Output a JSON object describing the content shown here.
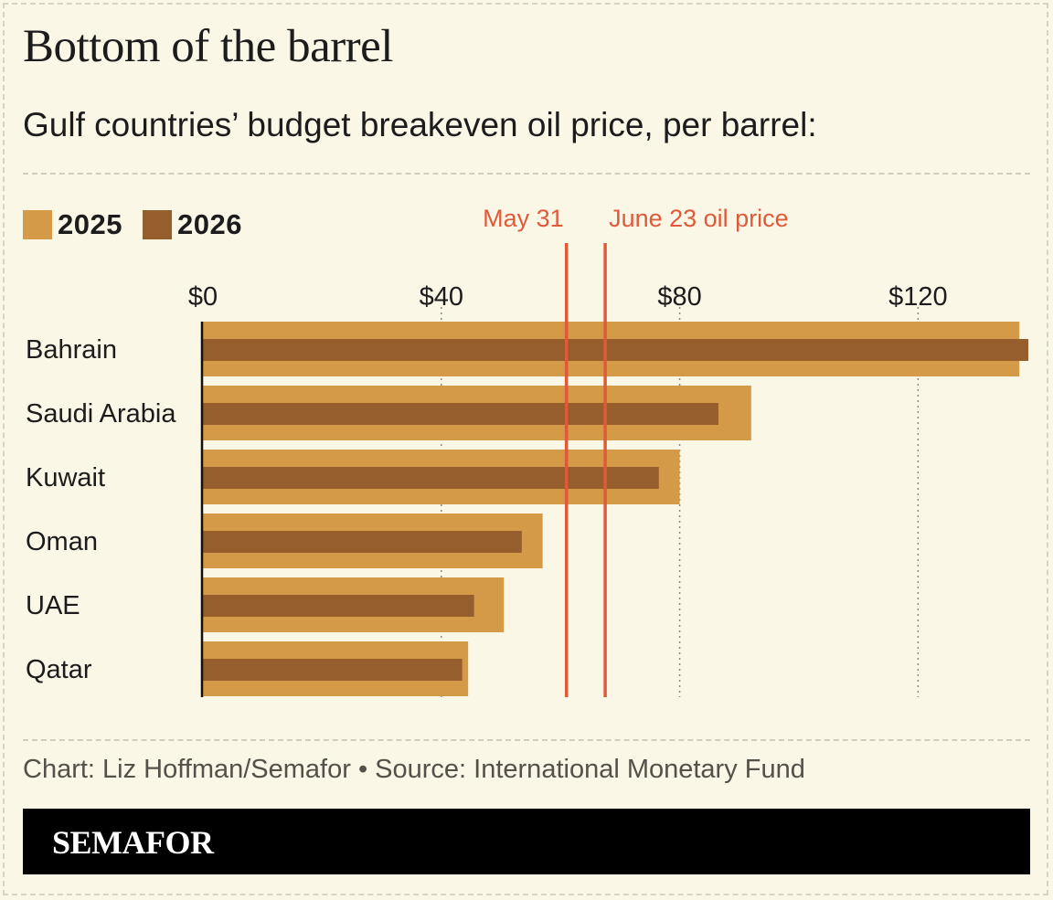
{
  "header": {
    "title": "Bottom of the barrel",
    "subtitle": "Gulf countries’ budget breakeven oil price, per barrel:"
  },
  "legend": [
    {
      "label": "2025",
      "color": "#d49a48"
    },
    {
      "label": "2026",
      "color": "#975e2d"
    }
  ],
  "footer": {
    "credit": "Chart: Liz Hoffman/Semafor • Source: International Monetary Fund",
    "brand": "SEMAFOR"
  },
  "chart_data": {
    "type": "bar",
    "orientation": "horizontal",
    "title": "Bottom of the barrel",
    "subtitle": "Gulf countries’ budget breakeven oil price, per barrel:",
    "categories": [
      "Bahrain",
      "Saudi Arabia",
      "Kuwait",
      "Oman",
      "UAE",
      "Qatar"
    ],
    "series": [
      {
        "name": "2025",
        "color": "#d49a48",
        "values": [
          137,
          92,
          80,
          57,
          50.5,
          44.5
        ]
      },
      {
        "name": "2026",
        "color": "#975e2d",
        "values": [
          138.5,
          86.5,
          76.5,
          53.5,
          45.5,
          43.5
        ]
      }
    ],
    "xlim": [
      0,
      138.5
    ],
    "xticks": [
      0,
      40,
      80,
      120
    ],
    "xtick_labels": [
      "$0",
      "$40",
      "$80",
      "$120"
    ],
    "grid": "vertical dotted",
    "reference_lines": [
      {
        "label": "May 31",
        "value": 61,
        "color": "#e05a3a"
      },
      {
        "label": "June 23 oil price",
        "value": 67.5,
        "color": "#e05a3a"
      }
    ],
    "legend_position": "top-left"
  }
}
